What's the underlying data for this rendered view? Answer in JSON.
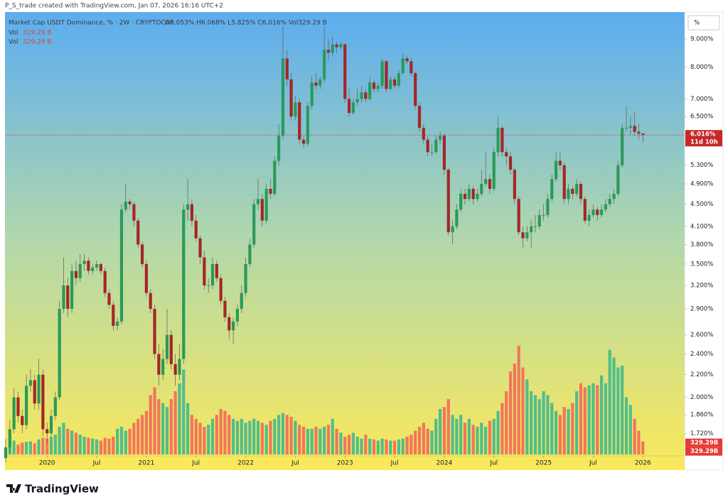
{
  "header": {
    "watermark": "P_S_trade created with TradingView.com, Jan 07, 2026 16:16 UTC+2",
    "scale_button": "%"
  },
  "footer": {
    "brand": "TradingView"
  },
  "chart_data": {
    "type": "candlestick",
    "title": "Market Cap USDT Dominance, % · 2W · CRYPTOCAP",
    "legend_values": "O6.053% H6.068% L5.825% C6.016% Vol329.29 B",
    "volume_legend": [
      {
        "label": "Vol",
        "value": "329.29 B"
      },
      {
        "label": "Vol",
        "value": "329.29 B"
      }
    ],
    "last_price_label": "6.016%",
    "countdown": "11d 10h",
    "volume_value_labels": [
      "329.29B",
      "329.29B"
    ],
    "log_scale": true,
    "grid": false,
    "colors": {
      "up": "#2a9a5a",
      "down": "#a52626",
      "wick": "#5c5c5c",
      "volume_up": "#52bd8c",
      "volume_down": "#f2765a",
      "price_line": "#d32f2f"
    },
    "ylim": [
      1.565,
      10.05
    ],
    "yticks": [
      {
        "value": 9,
        "label": "9.000%"
      },
      {
        "value": 8,
        "label": "8.000%"
      },
      {
        "value": 7,
        "label": "7.000%"
      },
      {
        "value": 6.5,
        "label": "6.500%"
      },
      {
        "value": 5.3,
        "label": "5.300%"
      },
      {
        "value": 4.9,
        "label": "4.900%"
      },
      {
        "value": 4.5,
        "label": "4.500%"
      },
      {
        "value": 4.1,
        "label": "4.100%"
      },
      {
        "value": 3.8,
        "label": "3.800%"
      },
      {
        "value": 3.5,
        "label": "3.500%"
      },
      {
        "value": 3.2,
        "label": "3.200%"
      },
      {
        "value": 2.9,
        "label": "2.900%"
      },
      {
        "value": 2.6,
        "label": "2.600%"
      },
      {
        "value": 2.4,
        "label": "2.400%"
      },
      {
        "value": 2.2,
        "label": "2.200%"
      },
      {
        "value": 2,
        "label": "2.000%"
      },
      {
        "value": 1.86,
        "label": "1.860%"
      },
      {
        "value": 1.72,
        "label": "1.720%"
      }
    ],
    "volume_ylim": [
      0,
      3000
    ],
    "xticks": [
      {
        "value": "2020-01",
        "label": "2020"
      },
      {
        "value": "2020-07",
        "label": "Jul"
      },
      {
        "value": "2021-01",
        "label": "2021"
      },
      {
        "value": "2021-07",
        "label": "Jul"
      },
      {
        "value": "2022-01",
        "label": "2022"
      },
      {
        "value": "2022-07",
        "label": "Jul"
      },
      {
        "value": "2023-01",
        "label": "2023"
      },
      {
        "value": "2023-07",
        "label": "Jul"
      },
      {
        "value": "2024-01",
        "label": "2024"
      },
      {
        "value": "2024-07",
        "label": "Jul"
      },
      {
        "value": "2025-01",
        "label": "2025"
      },
      {
        "value": "2025-07",
        "label": "Jul"
      },
      {
        "value": "2026-01",
        "label": "2026"
      }
    ],
    "x": [
      "2019-08",
      "2019-08",
      "2019-09",
      "2019-09",
      "2019-10",
      "2019-10",
      "2019-11",
      "2019-11",
      "2019-12",
      "2019-12",
      "2020-01",
      "2020-01",
      "2020-02",
      "2020-02",
      "2020-03",
      "2020-03",
      "2020-04",
      "2020-04",
      "2020-05",
      "2020-05",
      "2020-06",
      "2020-06",
      "2020-07",
      "2020-07",
      "2020-08",
      "2020-08",
      "2020-09",
      "2020-09",
      "2020-10",
      "2020-10",
      "2020-11",
      "2020-11",
      "2020-12",
      "2020-12",
      "2021-01",
      "2021-01",
      "2021-02",
      "2021-02",
      "2021-03",
      "2021-03",
      "2021-04",
      "2021-04",
      "2021-05",
      "2021-05",
      "2021-06",
      "2021-06",
      "2021-07",
      "2021-07",
      "2021-08",
      "2021-08",
      "2021-09",
      "2021-09",
      "2021-10",
      "2021-10",
      "2021-11",
      "2021-11",
      "2021-12",
      "2021-12",
      "2022-01",
      "2022-01",
      "2022-02",
      "2022-02",
      "2022-03",
      "2022-03",
      "2022-04",
      "2022-04",
      "2022-05",
      "2022-05",
      "2022-06",
      "2022-06",
      "2022-07",
      "2022-07",
      "2022-08",
      "2022-08",
      "2022-09",
      "2022-09",
      "2022-10",
      "2022-10",
      "2022-11",
      "2022-11",
      "2022-12",
      "2022-12",
      "2023-01",
      "2023-01",
      "2023-02",
      "2023-02",
      "2023-03",
      "2023-03",
      "2023-04",
      "2023-04",
      "2023-05",
      "2023-05",
      "2023-06",
      "2023-06",
      "2023-07",
      "2023-07",
      "2023-08",
      "2023-08",
      "2023-09",
      "2023-09",
      "2023-10",
      "2023-10",
      "2023-11",
      "2023-11",
      "2023-12",
      "2023-12",
      "2024-01",
      "2024-01",
      "2024-02",
      "2024-02",
      "2024-03",
      "2024-03",
      "2024-04",
      "2024-04",
      "2024-05",
      "2024-05",
      "2024-06",
      "2024-06",
      "2024-07",
      "2024-07",
      "2024-08",
      "2024-08",
      "2024-09",
      "2024-09",
      "2024-10",
      "2024-10",
      "2024-11",
      "2024-11",
      "2024-12",
      "2024-12",
      "2025-01",
      "2025-01",
      "2025-02",
      "2025-02",
      "2025-03",
      "2025-03",
      "2025-04",
      "2025-04",
      "2025-05",
      "2025-05",
      "2025-06",
      "2025-06",
      "2025-07",
      "2025-07",
      "2025-08",
      "2025-08",
      "2025-09",
      "2025-09",
      "2025-10",
      "2025-10",
      "2025-11",
      "2025-11",
      "2025-12",
      "2025-12",
      "2026-01"
    ],
    "ohlc": [
      [
        1.55,
        1.68,
        1.52,
        1.62
      ],
      [
        1.62,
        1.82,
        1.58,
        1.75
      ],
      [
        1.75,
        2.08,
        1.72,
        2.0
      ],
      [
        2.0,
        2.05,
        1.8,
        1.85
      ],
      [
        1.85,
        1.9,
        1.72,
        1.78
      ],
      [
        1.78,
        2.2,
        1.75,
        2.1
      ],
      [
        2.1,
        2.25,
        2.05,
        2.15
      ],
      [
        2.15,
        2.2,
        1.9,
        1.95
      ],
      [
        1.95,
        2.35,
        1.9,
        2.2
      ],
      [
        2.2,
        2.25,
        1.7,
        1.75
      ],
      [
        1.75,
        1.8,
        1.65,
        1.72
      ],
      [
        1.72,
        1.9,
        1.7,
        1.85
      ],
      [
        1.85,
        2.05,
        1.82,
        2.0
      ],
      [
        2.0,
        3.0,
        1.98,
        2.9
      ],
      [
        2.9,
        3.6,
        2.85,
        3.2
      ],
      [
        3.2,
        3.3,
        2.8,
        2.9
      ],
      [
        2.9,
        3.5,
        2.85,
        3.4
      ],
      [
        3.4,
        3.55,
        3.2,
        3.3
      ],
      [
        3.3,
        3.65,
        3.25,
        3.5
      ],
      [
        3.5,
        3.65,
        3.4,
        3.55
      ],
      [
        3.55,
        3.6,
        3.35,
        3.4
      ],
      [
        3.4,
        3.5,
        3.35,
        3.45
      ],
      [
        3.45,
        3.55,
        3.4,
        3.5
      ],
      [
        3.5,
        3.52,
        3.35,
        3.4
      ],
      [
        3.4,
        3.45,
        3.05,
        3.1
      ],
      [
        3.1,
        3.15,
        2.9,
        2.95
      ],
      [
        2.95,
        3.0,
        2.65,
        2.7
      ],
      [
        2.7,
        2.8,
        2.65,
        2.75
      ],
      [
        2.75,
        4.5,
        2.72,
        4.4
      ],
      [
        4.4,
        4.9,
        4.35,
        4.55
      ],
      [
        4.55,
        4.6,
        4.4,
        4.5
      ],
      [
        4.5,
        4.55,
        4.1,
        4.2
      ],
      [
        4.2,
        4.25,
        3.75,
        3.8
      ],
      [
        3.8,
        3.85,
        3.45,
        3.5
      ],
      [
        3.5,
        3.55,
        3.05,
        3.1
      ],
      [
        3.1,
        3.15,
        2.85,
        2.9
      ],
      [
        2.9,
        2.95,
        2.35,
        2.4
      ],
      [
        2.4,
        2.5,
        2.1,
        2.2
      ],
      [
        2.2,
        2.45,
        2.15,
        2.35
      ],
      [
        2.35,
        2.9,
        2.3,
        2.6
      ],
      [
        2.6,
        2.65,
        2.25,
        2.3
      ],
      [
        2.3,
        2.4,
        2.1,
        2.2
      ],
      [
        2.2,
        2.5,
        2.15,
        2.35
      ],
      [
        2.35,
        4.5,
        2.3,
        4.4
      ],
      [
        4.4,
        5.0,
        4.2,
        4.5
      ],
      [
        4.5,
        4.6,
        4.1,
        4.2
      ],
      [
        4.2,
        4.3,
        3.85,
        3.9
      ],
      [
        3.9,
        3.95,
        3.5,
        3.6
      ],
      [
        3.6,
        3.7,
        3.15,
        3.2
      ],
      [
        3.2,
        3.3,
        3.1,
        3.2
      ],
      [
        3.2,
        3.6,
        3.15,
        3.5
      ],
      [
        3.5,
        3.55,
        3.25,
        3.3
      ],
      [
        3.3,
        3.35,
        2.95,
        3.0
      ],
      [
        3.0,
        3.05,
        2.75,
        2.8
      ],
      [
        2.8,
        2.85,
        2.55,
        2.65
      ],
      [
        2.65,
        2.8,
        2.5,
        2.75
      ],
      [
        2.75,
        2.95,
        2.7,
        2.9
      ],
      [
        2.9,
        3.2,
        2.85,
        3.1
      ],
      [
        3.1,
        3.6,
        3.05,
        3.5
      ],
      [
        3.5,
        3.9,
        3.45,
        3.8
      ],
      [
        3.8,
        4.6,
        3.75,
        4.5
      ],
      [
        4.5,
        5.0,
        4.4,
        4.6
      ],
      [
        4.6,
        4.7,
        4.1,
        4.2
      ],
      [
        4.2,
        4.9,
        4.15,
        4.8
      ],
      [
        4.8,
        5.0,
        4.6,
        4.7
      ],
      [
        4.7,
        5.5,
        4.65,
        5.4
      ],
      [
        5.4,
        6.3,
        5.3,
        6.0
      ],
      [
        6.0,
        9.5,
        5.9,
        8.3
      ],
      [
        8.3,
        8.6,
        7.4,
        7.6
      ],
      [
        7.6,
        7.8,
        6.4,
        6.5
      ],
      [
        6.5,
        7.1,
        6.4,
        6.9
      ],
      [
        6.9,
        7.0,
        5.8,
        5.9
      ],
      [
        5.9,
        6.0,
        5.7,
        5.8
      ],
      [
        5.8,
        6.9,
        5.75,
        6.8
      ],
      [
        6.8,
        7.7,
        6.7,
        7.5
      ],
      [
        7.5,
        7.8,
        7.3,
        7.4
      ],
      [
        7.4,
        7.7,
        7.3,
        7.6
      ],
      [
        7.6,
        9.5,
        7.5,
        8.6
      ],
      [
        8.6,
        9.0,
        8.2,
        8.5
      ],
      [
        8.5,
        9.1,
        8.4,
        8.8
      ],
      [
        8.8,
        8.9,
        8.5,
        8.7
      ],
      [
        8.7,
        8.9,
        8.6,
        8.8
      ],
      [
        8.8,
        8.85,
        6.9,
        7.0
      ],
      [
        7.0,
        7.3,
        6.5,
        6.6
      ],
      [
        6.6,
        7.0,
        6.55,
        6.9
      ],
      [
        6.9,
        7.3,
        6.8,
        7.0
      ],
      [
        7.0,
        7.4,
        6.9,
        7.2
      ],
      [
        7.2,
        7.3,
        6.9,
        7.0
      ],
      [
        7.0,
        7.7,
        6.95,
        7.5
      ],
      [
        7.5,
        7.6,
        7.2,
        7.3
      ],
      [
        7.3,
        7.5,
        7.2,
        7.4
      ],
      [
        7.4,
        8.3,
        7.3,
        8.2
      ],
      [
        8.2,
        8.25,
        7.2,
        7.3
      ],
      [
        7.3,
        7.7,
        7.25,
        7.6
      ],
      [
        7.6,
        7.7,
        7.3,
        7.4
      ],
      [
        7.4,
        7.9,
        7.35,
        7.8
      ],
      [
        7.8,
        8.5,
        7.75,
        8.3
      ],
      [
        8.3,
        8.4,
        8.1,
        8.2
      ],
      [
        8.2,
        8.3,
        7.7,
        7.8
      ],
      [
        7.8,
        7.85,
        6.7,
        6.8
      ],
      [
        6.8,
        6.9,
        6.1,
        6.2
      ],
      [
        6.2,
        6.3,
        5.8,
        5.9
      ],
      [
        5.9,
        6.0,
        5.5,
        5.6
      ],
      [
        5.6,
        5.8,
        5.5,
        5.6
      ],
      [
        5.6,
        6.0,
        5.55,
        5.9
      ],
      [
        5.9,
        6.1,
        5.8,
        6.0
      ],
      [
        6.0,
        6.05,
        5.1,
        5.2
      ],
      [
        5.2,
        5.25,
        3.95,
        4.0
      ],
      [
        4.0,
        4.2,
        3.8,
        4.1
      ],
      [
        4.1,
        4.5,
        4.05,
        4.4
      ],
      [
        4.4,
        4.8,
        4.35,
        4.7
      ],
      [
        4.7,
        4.8,
        4.5,
        4.6
      ],
      [
        4.6,
        4.9,
        4.55,
        4.8
      ],
      [
        4.8,
        4.85,
        4.5,
        4.6
      ],
      [
        4.6,
        4.8,
        4.55,
        4.7
      ],
      [
        4.7,
        5.2,
        4.65,
        4.9
      ],
      [
        4.9,
        5.6,
        4.85,
        5.0
      ],
      [
        5.0,
        5.1,
        4.7,
        4.8
      ],
      [
        4.8,
        5.7,
        4.75,
        5.6
      ],
      [
        5.6,
        6.5,
        5.5,
        6.2
      ],
      [
        6.2,
        6.25,
        5.5,
        5.6
      ],
      [
        5.6,
        5.7,
        5.3,
        5.5
      ],
      [
        5.5,
        5.6,
        5.1,
        5.2
      ],
      [
        5.2,
        5.25,
        4.5,
        4.6
      ],
      [
        4.6,
        4.65,
        3.95,
        4.0
      ],
      [
        4.0,
        4.1,
        3.75,
        3.9
      ],
      [
        3.9,
        4.1,
        3.85,
        4.0
      ],
      [
        4.0,
        4.2,
        3.75,
        4.1
      ],
      [
        4.1,
        4.3,
        4.0,
        4.1
      ],
      [
        4.1,
        4.4,
        4.05,
        4.3
      ],
      [
        4.3,
        4.5,
        4.2,
        4.3
      ],
      [
        4.3,
        4.7,
        4.25,
        4.6
      ],
      [
        4.6,
        5.1,
        4.55,
        5.0
      ],
      [
        5.0,
        5.6,
        4.95,
        5.4
      ],
      [
        5.4,
        5.6,
        5.2,
        5.3
      ],
      [
        5.3,
        5.35,
        4.5,
        4.6
      ],
      [
        4.6,
        4.9,
        4.5,
        4.8
      ],
      [
        4.8,
        4.85,
        4.6,
        4.7
      ],
      [
        4.7,
        5.0,
        4.65,
        4.9
      ],
      [
        4.9,
        4.95,
        4.5,
        4.6
      ],
      [
        4.6,
        4.65,
        4.15,
        4.2
      ],
      [
        4.2,
        4.4,
        4.1,
        4.3
      ],
      [
        4.3,
        4.5,
        4.25,
        4.4
      ],
      [
        4.4,
        4.45,
        4.2,
        4.3
      ],
      [
        4.3,
        4.5,
        4.25,
        4.4
      ],
      [
        4.4,
        4.6,
        4.35,
        4.5
      ],
      [
        4.5,
        4.7,
        4.45,
        4.6
      ],
      [
        4.6,
        4.8,
        4.5,
        4.7
      ],
      [
        4.7,
        5.4,
        4.65,
        5.3
      ],
      [
        5.3,
        6.3,
        5.25,
        6.2
      ],
      [
        6.2,
        6.8,
        6.1,
        6.2
      ],
      [
        6.2,
        6.5,
        6.0,
        6.25
      ],
      [
        6.25,
        6.6,
        6.0,
        6.1
      ],
      [
        6.1,
        6.3,
        5.9,
        6.053
      ],
      [
        6.053,
        6.068,
        5.825,
        6.016
      ]
    ],
    "volume": [
      180,
      200,
      350,
      250,
      300,
      320,
      330,
      280,
      380,
      420,
      400,
      450,
      500,
      700,
      800,
      650,
      600,
      550,
      500,
      450,
      420,
      400,
      380,
      350,
      420,
      400,
      450,
      650,
      700,
      600,
      650,
      800,
      900,
      1000,
      1100,
      1500,
      1700,
      1400,
      1300,
      1200,
      1400,
      1600,
      1800,
      2150,
      1300,
      1000,
      900,
      800,
      700,
      750,
      900,
      1000,
      1150,
      1100,
      1000,
      900,
      850,
      900,
      800,
      850,
      900,
      850,
      800,
      750,
      850,
      900,
      1000,
      1050,
      1000,
      950,
      850,
      750,
      700,
      650,
      650,
      700,
      650,
      700,
      750,
      900,
      650,
      550,
      450,
      500,
      550,
      450,
      400,
      500,
      400,
      380,
      350,
      400,
      380,
      350,
      350,
      380,
      400,
      450,
      500,
      600,
      700,
      800,
      650,
      600,
      900,
      1150,
      1200,
      1400,
      1000,
      900,
      1000,
      800,
      900,
      750,
      700,
      800,
      700,
      850,
      900,
      1100,
      1300,
      1600,
      2100,
      2300,
      2750,
      2200,
      1900,
      1600,
      1500,
      1400,
      1600,
      1500,
      1300,
      1100,
      1000,
      1200,
      1150,
      1300,
      1600,
      1800,
      1700,
      1750,
      1800,
      1750,
      2000,
      1800,
      2650,
      2450,
      2200,
      2250,
      1450,
      1250,
      900,
      600,
      329.29
    ]
  }
}
